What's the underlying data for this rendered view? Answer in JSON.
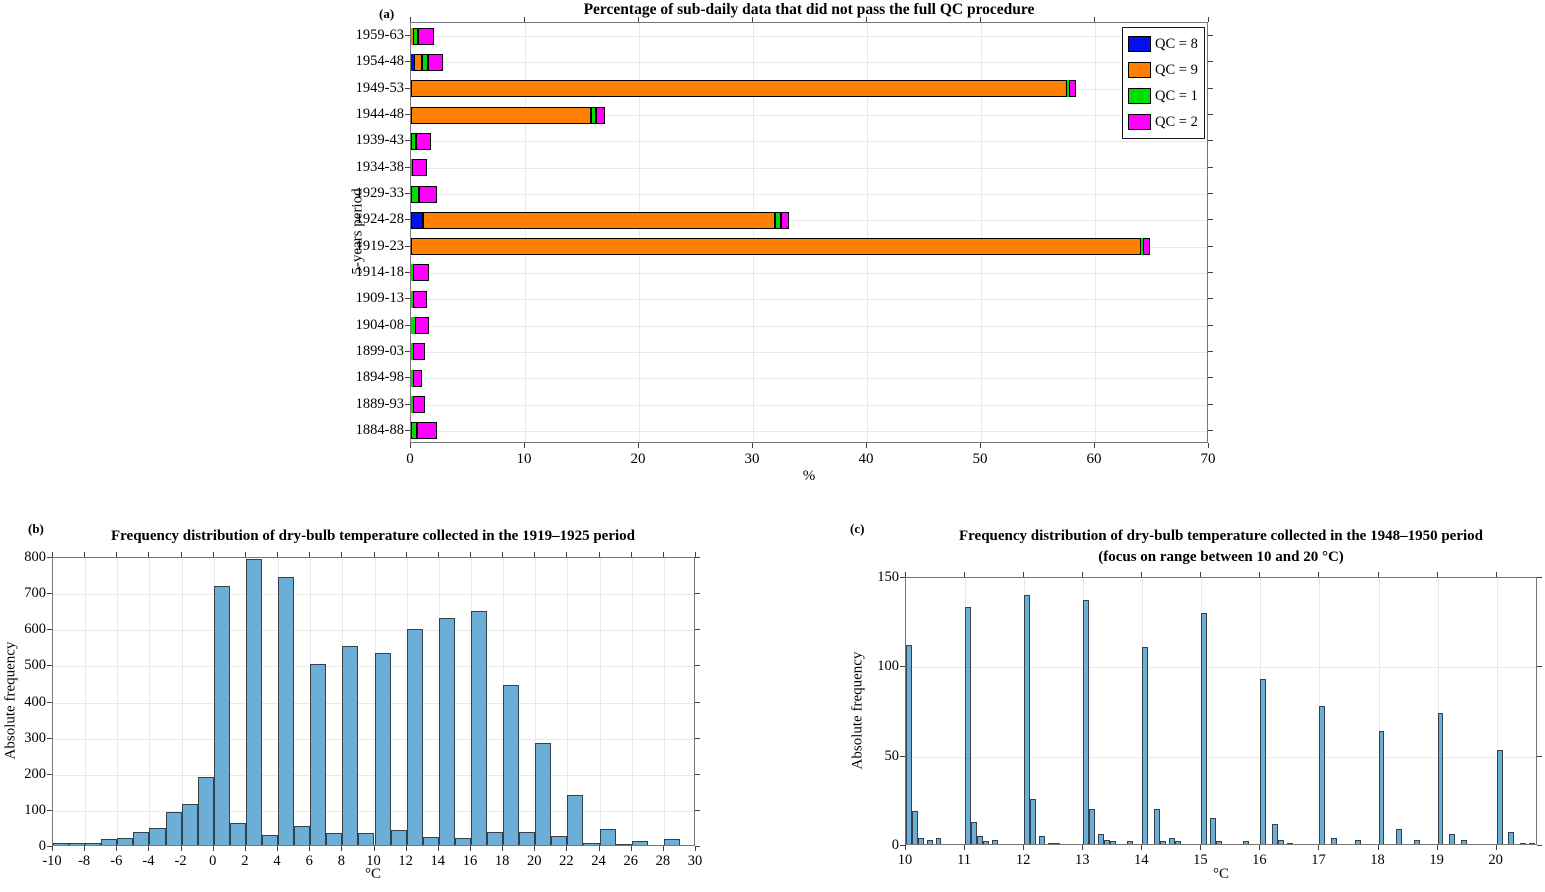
{
  "figure": {
    "background": "#FFFFFF",
    "histogram_fill": "#6DAED7",
    "histogram_edge": "#33404D"
  },
  "chart_data": [
    {
      "id": "a",
      "type": "bar",
      "orientation": "horizontal",
      "stacked": true,
      "panel_label": "(a)",
      "title": "Percentage of sub-daily data that did not pass the full QC procedure",
      "xlabel": "%",
      "ylabel": "5-years period",
      "xlim": [
        0,
        70
      ],
      "xticks": [
        0,
        10,
        20,
        30,
        40,
        50,
        60,
        70
      ],
      "grid": true,
      "legend_position": "top-right",
      "categories": [
        "1959-63",
        "1954-48",
        "1949-53",
        "1944-48",
        "1939-43",
        "1934-38",
        "1929-33",
        "1924-28",
        "1919-23",
        "1914-18",
        "1909-13",
        "1904-08",
        "1899-03",
        "1894-98",
        "1889-93",
        "1884-88"
      ],
      "series": [
        {
          "name": "QC = 8",
          "color": "#0010EE",
          "values": [
            0,
            0.25,
            0,
            0,
            0,
            0,
            0,
            1.05,
            0,
            0,
            0,
            0,
            0,
            0,
            0,
            0
          ]
        },
        {
          "name": "QC = 9",
          "color": "#FF8000",
          "values": [
            0.2,
            0.7,
            57.5,
            15.8,
            0,
            0,
            0,
            30.9,
            64.0,
            0,
            0,
            0,
            0,
            0,
            0,
            0
          ]
        },
        {
          "name": "QC = 1",
          "color": "#00DD00",
          "values": [
            0.4,
            0.5,
            0.25,
            0.45,
            0.45,
            0.1,
            0.7,
            0.5,
            0.2,
            0.2,
            0.2,
            0.35,
            0.2,
            0.15,
            0.2,
            0.5
          ]
        },
        {
          "name": "QC = 2",
          "color": "#FF00FF",
          "values": [
            1.4,
            1.35,
            0.6,
            0.75,
            1.3,
            1.3,
            1.6,
            0.7,
            0.65,
            1.4,
            1.2,
            1.2,
            1.05,
            0.85,
            1.05,
            1.75
          ]
        }
      ]
    },
    {
      "id": "b",
      "type": "histogram",
      "panel_label": "(b)",
      "title": "Frequency distribution of dry-bulb temperature collected in the 1919–1925 period",
      "xlabel": "°C",
      "ylabel": "Absolute frequency",
      "xlim": [
        -10,
        30
      ],
      "ylim": [
        0,
        800
      ],
      "xticks": [
        -10,
        -8,
        -6,
        -4,
        -2,
        0,
        2,
        4,
        6,
        8,
        10,
        12,
        14,
        16,
        18,
        20,
        22,
        24,
        26,
        28,
        30
      ],
      "yticks": [
        0,
        100,
        200,
        300,
        400,
        500,
        600,
        700,
        800
      ],
      "grid": true,
      "bin_start": -10,
      "bin_width": 1,
      "values": [
        8,
        8,
        8,
        19,
        22,
        38,
        50,
        95,
        115,
        190,
        720,
        65,
        795,
        30,
        745,
        55,
        503,
        36,
        555,
        35,
        535,
        45,
        600,
        25,
        630,
        23,
        650,
        40,
        445,
        40,
        285,
        28,
        140,
        8,
        48,
        5,
        15,
        0,
        20,
        0
      ]
    },
    {
      "id": "c",
      "type": "histogram",
      "panel_label": "(c)",
      "title": "Frequency distribution of dry-bulb temperature collected in the 1948–1950 period",
      "subtitle": "(focus on range between 10 and 20 °C)",
      "xlabel": "°C",
      "ylabel": "Absolute frequency",
      "xlim": [
        10,
        20.7
      ],
      "ylim": [
        0,
        150
      ],
      "xticks": [
        10,
        11,
        12,
        13,
        14,
        15,
        16,
        17,
        18,
        19,
        20
      ],
      "yticks": [
        0,
        50,
        100,
        150
      ],
      "grid": true,
      "bin_width": 0.1,
      "bars": [
        [
          10.0,
          112
        ],
        [
          10.1,
          19
        ],
        [
          10.2,
          4
        ],
        [
          10.35,
          3
        ],
        [
          10.5,
          4
        ],
        [
          11.0,
          133
        ],
        [
          11.1,
          13
        ],
        [
          11.2,
          5
        ],
        [
          11.3,
          2
        ],
        [
          11.45,
          3
        ],
        [
          12.0,
          140
        ],
        [
          12.1,
          26
        ],
        [
          12.25,
          5
        ],
        [
          12.4,
          1
        ],
        [
          12.5,
          1
        ],
        [
          13.0,
          137
        ],
        [
          13.1,
          20
        ],
        [
          13.25,
          6
        ],
        [
          13.35,
          3
        ],
        [
          13.45,
          2
        ],
        [
          13.75,
          2
        ],
        [
          14.0,
          111
        ],
        [
          14.2,
          20
        ],
        [
          14.3,
          2
        ],
        [
          14.45,
          4
        ],
        [
          14.55,
          2
        ],
        [
          15.0,
          130
        ],
        [
          15.15,
          15
        ],
        [
          15.25,
          2
        ],
        [
          15.7,
          2
        ],
        [
          16.0,
          93
        ],
        [
          16.2,
          12
        ],
        [
          16.3,
          3
        ],
        [
          16.45,
          1
        ],
        [
          17.0,
          78
        ],
        [
          17.2,
          4
        ],
        [
          17.6,
          3
        ],
        [
          18.0,
          64
        ],
        [
          18.3,
          9
        ],
        [
          18.6,
          3
        ],
        [
          19.0,
          74
        ],
        [
          19.2,
          6
        ],
        [
          19.4,
          3
        ],
        [
          20.0,
          53
        ],
        [
          20.2,
          7
        ],
        [
          20.4,
          1
        ],
        [
          20.55,
          1
        ]
      ]
    }
  ]
}
